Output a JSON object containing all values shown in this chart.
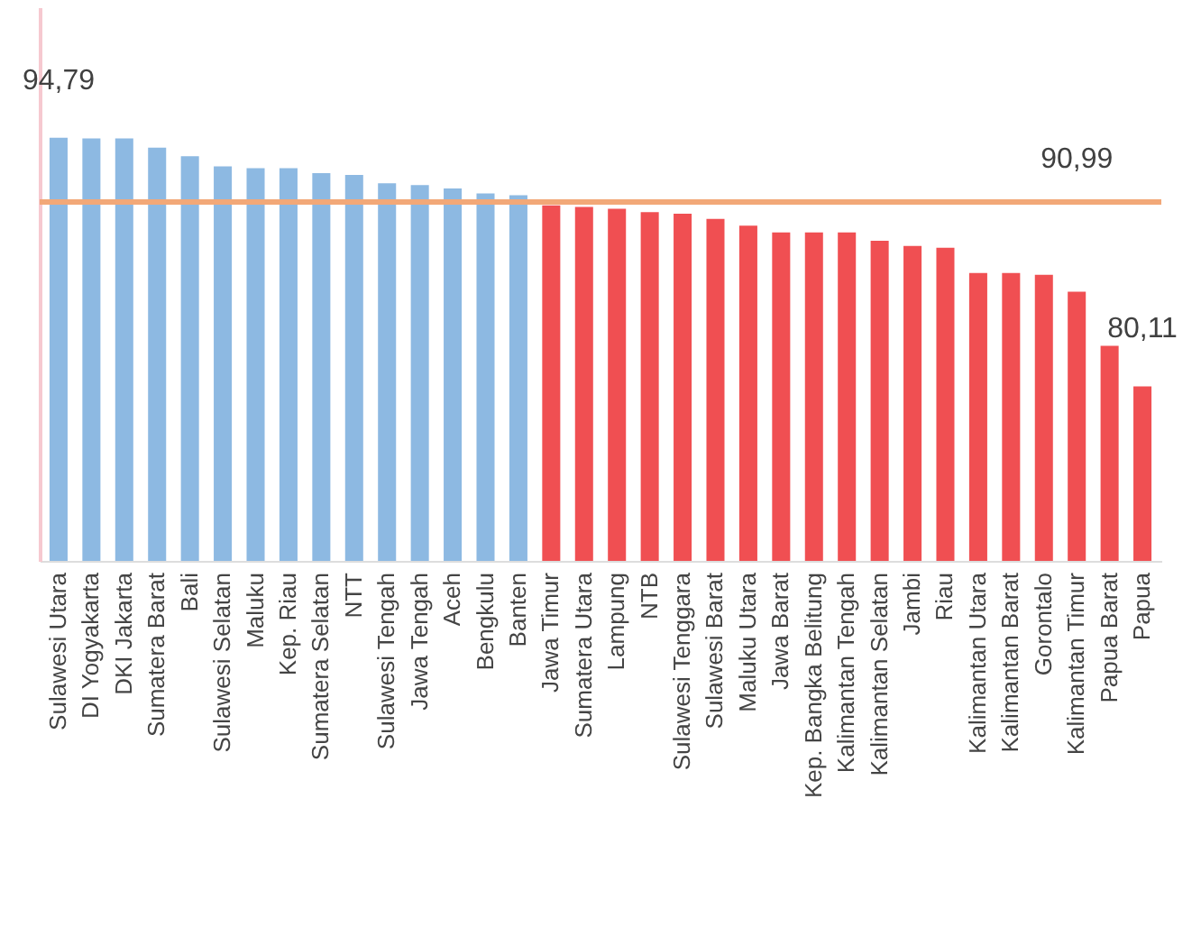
{
  "chart_data": {
    "type": "bar",
    "categories": [
      "Sulawesi Utara",
      "DI Yogyakarta",
      "DKI Jakarta",
      "Sumatera Barat",
      "Bali",
      "Sulawesi Selatan",
      "Maluku",
      "Kep. Riau",
      "Sumatera Selatan",
      "NTT",
      "Sulawesi Tengah",
      "Jawa Tengah",
      "Aceh",
      "Bengkulu",
      "Banten",
      "Jawa Timur",
      "Sumatera Utara",
      "Lampung",
      "NTB",
      "Sulawesi Tenggara",
      "Sulawesi Barat",
      "Maluku Utara",
      "Jawa Barat",
      "Kep. Bangka Belitung",
      "Kalimantan Tengah",
      "Kalimantan Selatan",
      "Jambi",
      "Riau",
      "Kalimantan Utara",
      "Kalimantan Barat",
      "Gorontalo",
      "Kalimantan Timur",
      "Papua Barat",
      "Papua"
    ],
    "values": [
      94.79,
      94.75,
      94.75,
      94.2,
      93.7,
      93.1,
      93.0,
      93.0,
      92.7,
      92.6,
      92.1,
      92.0,
      91.8,
      91.5,
      91.4,
      90.8,
      90.7,
      90.6,
      90.4,
      90.3,
      90.0,
      89.6,
      89.2,
      89.2,
      89.2,
      88.7,
      88.4,
      88.3,
      86.8,
      86.8,
      86.7,
      85.7,
      82.5,
      80.11
    ],
    "colors": [
      "#8db9e2",
      "#8db9e2",
      "#8db9e2",
      "#8db9e2",
      "#8db9e2",
      "#8db9e2",
      "#8db9e2",
      "#8db9e2",
      "#8db9e2",
      "#8db9e2",
      "#8db9e2",
      "#8db9e2",
      "#8db9e2",
      "#8db9e2",
      "#8db9e2",
      "#f04f52",
      "#f04f52",
      "#f04f52",
      "#f04f52",
      "#f04f52",
      "#f04f52",
      "#f04f52",
      "#f04f52",
      "#f04f52",
      "#f04f52",
      "#f04f52",
      "#f04f52",
      "#f04f52",
      "#f04f52",
      "#f04f52",
      "#f04f52",
      "#f04f52",
      "#f04f52",
      "#f04f52"
    ],
    "value_labels": [
      "94,79",
      null,
      null,
      null,
      null,
      null,
      null,
      null,
      null,
      null,
      null,
      null,
      null,
      null,
      null,
      null,
      null,
      null,
      null,
      null,
      null,
      null,
      null,
      null,
      null,
      null,
      null,
      null,
      null,
      null,
      null,
      null,
      null,
      "80,11"
    ],
    "ylim": [
      69.8,
      102.5
    ],
    "ref_lines": [
      {
        "axis": "y",
        "value": 90.99,
        "label": "90,99",
        "color": "#f2a878"
      }
    ],
    "grid": false
  }
}
